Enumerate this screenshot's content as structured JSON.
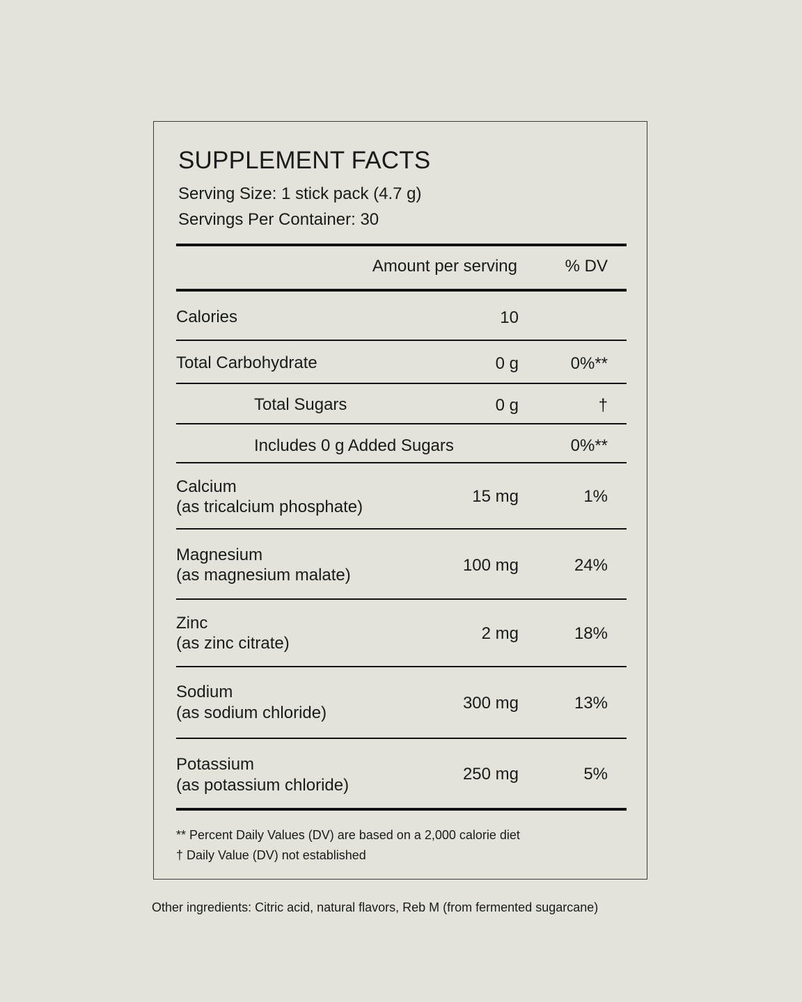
{
  "title": "SUPPLEMENT FACTS",
  "serving_size": "Serving Size: 1 stick pack (4.7 g)",
  "servings_per_container": "Servings Per Container: 30",
  "header": {
    "amount": "Amount per serving",
    "dv": "% DV"
  },
  "rows": [
    {
      "name": "Calories",
      "sub": "",
      "amount": "10",
      "dv": ""
    },
    {
      "name": "Total Carbohydrate",
      "sub": "",
      "amount": "0 g",
      "dv": "0%**"
    },
    {
      "name": "Total Sugars",
      "sub": "",
      "amount": "0 g",
      "dv": "†"
    },
    {
      "name": "Includes 0 g Added Sugars",
      "sub": "",
      "amount": "",
      "dv": "0%**"
    },
    {
      "name": "Calcium",
      "sub": "(as tricalcium phosphate)",
      "amount": "15 mg",
      "dv": "1%"
    },
    {
      "name": "Magnesium",
      "sub": "(as magnesium malate)",
      "amount": "100 mg",
      "dv": "24%"
    },
    {
      "name": "Zinc",
      "sub": "(as zinc citrate)",
      "amount": "2 mg",
      "dv": "18%"
    },
    {
      "name": "Sodium",
      "sub": "(as sodium chloride)",
      "amount": "300 mg",
      "dv": "13%"
    },
    {
      "name": "Potassium",
      "sub": "(as potassium chloride)",
      "amount": "250 mg",
      "dv": "5%"
    }
  ],
  "footnotes": [
    "** Percent Daily Values (DV) are based on a 2,000 calorie diet",
    "† Daily Value (DV) not established"
  ],
  "other_ingredients": "Other ingredients: Citric acid, natural flavors, Reb M (from fermented sugarcane)"
}
